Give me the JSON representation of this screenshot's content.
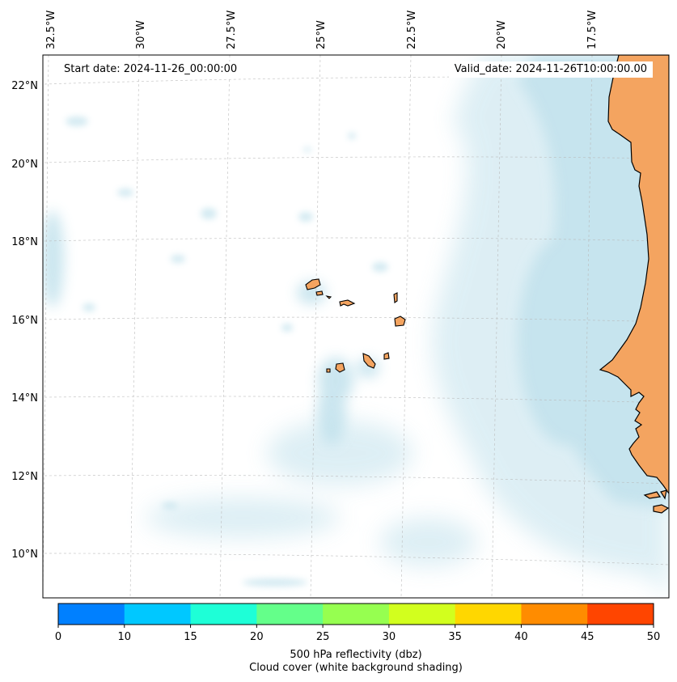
{
  "map": {
    "start_date": "Start date: 2024-11-26_00:00:00",
    "valid_date": "Valid_date: 2024-11-26T10:00:00.00",
    "longitude_labels": [
      "32.5°W",
      "30°W",
      "27.5°W",
      "25°W",
      "22.5°W",
      "20°W",
      "17.5°W"
    ],
    "latitude_labels": [
      "22°N",
      "20°N",
      "18°N",
      "16°N",
      "14°N",
      "12°N",
      "10°N"
    ],
    "land_color": "#f4a460",
    "cloud_color": "#add8e6",
    "features": [
      "Cape Verde islands",
      "West African coastline (Mauritania, Senegal, Gambia, Guinea-Bissau)"
    ]
  },
  "colorbar": {
    "ticks": [
      "0",
      "10",
      "15",
      "20",
      "25",
      "30",
      "35",
      "40",
      "45",
      "50"
    ],
    "colors": [
      "#0080ff",
      "#00c8ff",
      "#1effd7",
      "#64ff8a",
      "#96ff50",
      "#d2ff1e",
      "#ffd700",
      "#ff8c00",
      "#ff4500"
    ],
    "label_line1": "500 hPa reflectivity (dbz)",
    "label_line2": "Cloud cover (white background shading)"
  }
}
